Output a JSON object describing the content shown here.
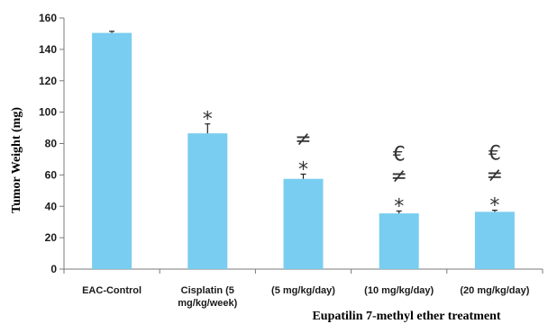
{
  "chart_data": {
    "type": "bar",
    "xlabel": "Eupatilin 7-methyl ether treatment",
    "ylabel": "Tumor Weight (mg)",
    "ylim": [
      0,
      160
    ],
    "yticks": [
      0,
      20,
      40,
      60,
      80,
      100,
      120,
      140,
      160
    ],
    "grid": false,
    "bar_color": "#79cdf0",
    "categories": [
      {
        "lines": [
          "EAC-Control"
        ]
      },
      {
        "lines": [
          "Cisplatin (5",
          "mg/kg/week)"
        ]
      },
      {
        "lines": [
          "(5 mg/kg/day)"
        ]
      },
      {
        "lines": [
          "(10 mg/kg/day)"
        ]
      },
      {
        "lines": [
          "(20 mg/kg/day)"
        ]
      }
    ],
    "values": [
      150.5,
      86.5,
      57.5,
      35.5,
      36.5
    ],
    "errors": [
      1.0,
      6.0,
      3.0,
      1.5,
      1.0
    ],
    "annotations": [
      [],
      [
        "*"
      ],
      [
        "≠",
        "*"
      ],
      [
        "€",
        "≠",
        "*"
      ],
      [
        "€",
        "≠",
        "*"
      ]
    ]
  }
}
